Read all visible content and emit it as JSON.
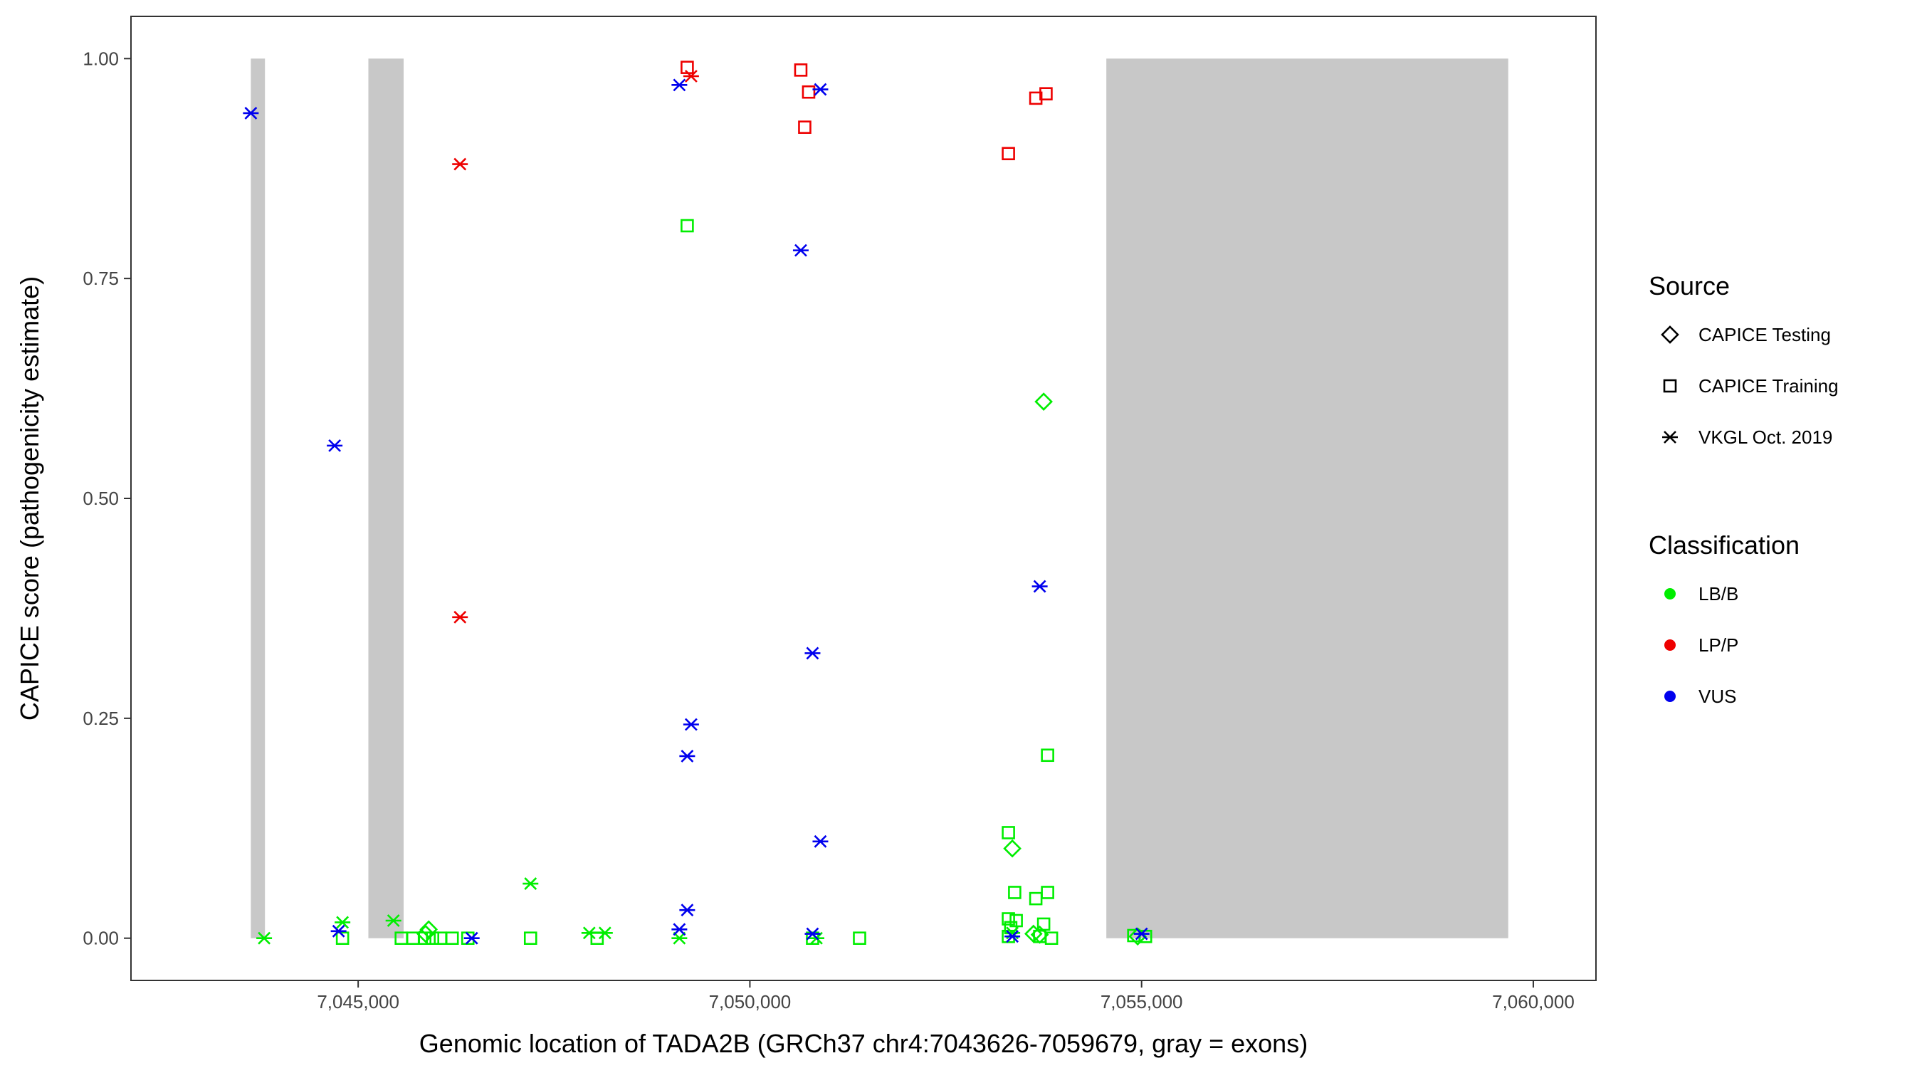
{
  "chart_data": {
    "type": "scatter",
    "xlabel": "Genomic location of TADA2B (GRCh37 chr4:7043626-7059679, gray = exons)",
    "ylabel": "CAPICE score (pathogenicity estimate)",
    "xlim": [
      7042100,
      7060800
    ],
    "ylim": [
      -0.048,
      1.048
    ],
    "x_ticks": [
      7045000,
      7050000,
      7055000,
      7060000
    ],
    "x_tick_labels": [
      "7,045,000",
      "7,050,000",
      "7,055,000",
      "7,060,000"
    ],
    "y_ticks": [
      0,
      0.25,
      0.5,
      0.75,
      1.0
    ],
    "y_tick_labels": [
      "0.00",
      "0.25",
      "0.50",
      "0.75",
      "1.00"
    ],
    "grid": false,
    "legend_placement": "right",
    "exon_color": "#c8c8c8",
    "exons": [
      {
        "start": 7043630,
        "end": 7043810
      },
      {
        "start": 7045130,
        "end": 7045580
      },
      {
        "start": 7054550,
        "end": 7059680
      }
    ],
    "legends": {
      "source": {
        "title": "Source",
        "entries": [
          {
            "label": "CAPICE Testing",
            "shape": "diamond"
          },
          {
            "label": "CAPICE Training",
            "shape": "square"
          },
          {
            "label": "VKGL Oct. 2019",
            "shape": "asterisk"
          }
        ]
      },
      "classification": {
        "title": "Classification",
        "entries": [
          {
            "label": "LB/B",
            "color": "#00ee00"
          },
          {
            "label": "LP/P",
            "color": "#ee0000"
          },
          {
            "label": "VUS",
            "color": "#0000ee"
          }
        ]
      }
    },
    "series": [
      {
        "source": "CAPICE Testing",
        "classification": "LB/B",
        "points": [
          [
            7045900,
            0.01
          ],
          [
            7045860,
            0.005
          ],
          [
            7053350,
            0.102
          ],
          [
            7053750,
            0.61
          ],
          [
            7053620,
            0.005
          ],
          [
            7053700,
            0.004
          ],
          [
            7054950,
            0.002
          ]
        ]
      },
      {
        "source": "CAPICE Training",
        "classification": "LB/B",
        "points": [
          [
            7044800,
            0.0
          ],
          [
            7045550,
            0.0
          ],
          [
            7045700,
            0.0
          ],
          [
            7045850,
            0.0
          ],
          [
            7045950,
            0.0
          ],
          [
            7046050,
            0.0
          ],
          [
            7046200,
            0.0
          ],
          [
            7046400,
            0.0
          ],
          [
            7047200,
            0.0
          ],
          [
            7048050,
            0.0
          ],
          [
            7049200,
            0.81
          ],
          [
            7050800,
            0.0
          ],
          [
            7051400,
            0.0
          ],
          [
            7053300,
            0.12
          ],
          [
            7053380,
            0.052
          ],
          [
            7053300,
            0.022
          ],
          [
            7053400,
            0.02
          ],
          [
            7053330,
            0.012
          ],
          [
            7053300,
            0.002
          ],
          [
            7053650,
            0.045
          ],
          [
            7053800,
            0.052
          ],
          [
            7053750,
            0.016
          ],
          [
            7053700,
            0.002
          ],
          [
            7053850,
            0.0
          ],
          [
            7053800,
            0.208
          ],
          [
            7054900,
            0.003
          ],
          [
            7055050,
            0.002
          ]
        ]
      },
      {
        "source": "CAPICE Training",
        "classification": "LP/P",
        "points": [
          [
            7049200,
            0.99
          ],
          [
            7050650,
            0.987
          ],
          [
            7050750,
            0.962
          ],
          [
            7050700,
            0.922
          ],
          [
            7053300,
            0.892
          ],
          [
            7053650,
            0.955
          ],
          [
            7053780,
            0.96
          ]
        ]
      },
      {
        "source": "VKGL Oct. 2019",
        "classification": "LB/B",
        "points": [
          [
            7043800,
            0.0
          ],
          [
            7044800,
            0.018
          ],
          [
            7045450,
            0.02
          ],
          [
            7047200,
            0.062
          ],
          [
            7047950,
            0.006
          ],
          [
            7048150,
            0.006
          ],
          [
            7049100,
            0.0
          ],
          [
            7050850,
            0.0
          ],
          [
            7053350,
            0.006
          ]
        ]
      },
      {
        "source": "VKGL Oct. 2019",
        "classification": "LP/P",
        "points": [
          [
            7046300,
            0.88
          ],
          [
            7046300,
            0.365
          ],
          [
            7049250,
            0.98
          ]
        ]
      },
      {
        "source": "VKGL Oct. 2019",
        "classification": "VUS",
        "points": [
          [
            7043630,
            0.938
          ],
          [
            7044700,
            0.56
          ],
          [
            7044750,
            0.008
          ],
          [
            7046450,
            0.0
          ],
          [
            7049100,
            0.97
          ],
          [
            7050900,
            0.965
          ],
          [
            7050650,
            0.782
          ],
          [
            7050800,
            0.324
          ],
          [
            7049250,
            0.243
          ],
          [
            7049200,
            0.207
          ],
          [
            7050900,
            0.11
          ],
          [
            7049200,
            0.032
          ],
          [
            7049100,
            0.01
          ],
          [
            7050800,
            0.005
          ],
          [
            7053350,
            0.002
          ],
          [
            7053700,
            0.4
          ],
          [
            7055000,
            0.005
          ]
        ]
      }
    ]
  }
}
